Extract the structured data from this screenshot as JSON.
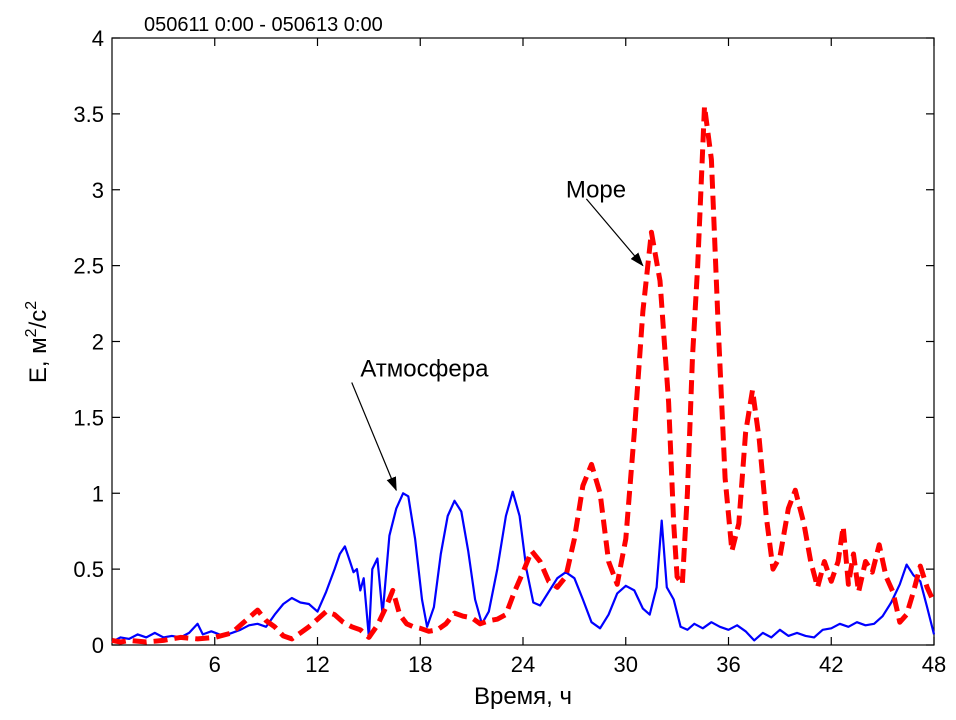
{
  "chart_data": {
    "type": "line",
    "title": "050611 0:00 - 050613 0:00",
    "xlabel": "Время, ч",
    "ylabel": {
      "base": "E, м",
      "sup1": "2",
      "mid": "/c",
      "sup2": "2"
    },
    "xlim": [
      0,
      48
    ],
    "ylim": [
      0,
      4
    ],
    "xticks": [
      6,
      12,
      18,
      24,
      30,
      36,
      42,
      48
    ],
    "yticks": [
      0,
      0.5,
      1,
      1.5,
      2,
      2.5,
      3,
      3.5,
      4
    ],
    "ytick_labels": [
      "0",
      "0.5",
      "1",
      "1.5",
      "2",
      "2.5",
      "3",
      "3.5",
      "4"
    ],
    "grid": false,
    "series": [
      {
        "style": "solid",
        "color": "#0000ff",
        "points": [
          [
            0,
            0.02
          ],
          [
            0.5,
            0.05
          ],
          [
            1,
            0.04
          ],
          [
            1.5,
            0.07
          ],
          [
            2,
            0.05
          ],
          [
            2.5,
            0.08
          ],
          [
            3,
            0.05
          ],
          [
            3.5,
            0.06
          ],
          [
            4,
            0.05
          ],
          [
            4.5,
            0.08
          ],
          [
            5,
            0.14
          ],
          [
            5.3,
            0.07
          ],
          [
            5.8,
            0.09
          ],
          [
            6.5,
            0.06
          ],
          [
            7,
            0.08
          ],
          [
            7.5,
            0.1
          ],
          [
            8,
            0.13
          ],
          [
            8.5,
            0.14
          ],
          [
            9,
            0.12
          ],
          [
            9.5,
            0.2
          ],
          [
            10,
            0.27
          ],
          [
            10.5,
            0.31
          ],
          [
            11,
            0.28
          ],
          [
            11.5,
            0.27
          ],
          [
            12,
            0.22
          ],
          [
            12.5,
            0.35
          ],
          [
            13,
            0.5
          ],
          [
            13.3,
            0.6
          ],
          [
            13.6,
            0.65
          ],
          [
            13.9,
            0.55
          ],
          [
            14.1,
            0.48
          ],
          [
            14.3,
            0.5
          ],
          [
            14.5,
            0.36
          ],
          [
            14.7,
            0.44
          ],
          [
            15,
            0.05
          ],
          [
            15.2,
            0.5
          ],
          [
            15.5,
            0.57
          ],
          [
            15.8,
            0.2
          ],
          [
            16.2,
            0.72
          ],
          [
            16.6,
            0.9
          ],
          [
            17,
            1.0
          ],
          [
            17.3,
            0.98
          ],
          [
            17.7,
            0.7
          ],
          [
            18.1,
            0.3
          ],
          [
            18.4,
            0.12
          ],
          [
            18.8,
            0.25
          ],
          [
            19.2,
            0.6
          ],
          [
            19.6,
            0.85
          ],
          [
            20,
            0.95
          ],
          [
            20.4,
            0.88
          ],
          [
            20.8,
            0.62
          ],
          [
            21.2,
            0.3
          ],
          [
            21.6,
            0.14
          ],
          [
            22,
            0.22
          ],
          [
            22.5,
            0.5
          ],
          [
            23,
            0.85
          ],
          [
            23.4,
            1.01
          ],
          [
            23.8,
            0.85
          ],
          [
            24.2,
            0.5
          ],
          [
            24.6,
            0.28
          ],
          [
            25,
            0.26
          ],
          [
            25.5,
            0.35
          ],
          [
            26,
            0.44
          ],
          [
            26.5,
            0.48
          ],
          [
            27,
            0.44
          ],
          [
            27.5,
            0.3
          ],
          [
            28,
            0.15
          ],
          [
            28.5,
            0.11
          ],
          [
            29,
            0.2
          ],
          [
            29.5,
            0.34
          ],
          [
            30,
            0.39
          ],
          [
            30.5,
            0.36
          ],
          [
            31,
            0.24
          ],
          [
            31.4,
            0.2
          ],
          [
            31.8,
            0.38
          ],
          [
            32.1,
            0.82
          ],
          [
            32.4,
            0.38
          ],
          [
            32.8,
            0.3
          ],
          [
            33.2,
            0.12
          ],
          [
            33.6,
            0.1
          ],
          [
            34,
            0.14
          ],
          [
            34.5,
            0.11
          ],
          [
            35,
            0.15
          ],
          [
            35.5,
            0.12
          ],
          [
            36,
            0.1
          ],
          [
            36.5,
            0.13
          ],
          [
            37,
            0.09
          ],
          [
            37.5,
            0.03
          ],
          [
            38,
            0.08
          ],
          [
            38.5,
            0.05
          ],
          [
            39,
            0.1
          ],
          [
            39.5,
            0.06
          ],
          [
            40,
            0.08
          ],
          [
            40.5,
            0.06
          ],
          [
            41,
            0.05
          ],
          [
            41.5,
            0.1
          ],
          [
            42,
            0.11
          ],
          [
            42.5,
            0.14
          ],
          [
            43,
            0.12
          ],
          [
            43.5,
            0.15
          ],
          [
            44,
            0.13
          ],
          [
            44.5,
            0.14
          ],
          [
            45,
            0.19
          ],
          [
            45.5,
            0.28
          ],
          [
            46,
            0.4
          ],
          [
            46.4,
            0.53
          ],
          [
            46.8,
            0.46
          ],
          [
            47.2,
            0.42
          ],
          [
            47.6,
            0.25
          ],
          [
            48,
            0.07
          ]
        ]
      },
      {
        "style": "dashed",
        "color": "#ff0000",
        "points": [
          [
            0,
            0.03
          ],
          [
            0.5,
            0.02
          ],
          [
            1,
            0.03
          ],
          [
            2,
            0.02
          ],
          [
            3,
            0.03
          ],
          [
            4,
            0.05
          ],
          [
            5,
            0.04
          ],
          [
            6,
            0.05
          ],
          [
            7,
            0.08
          ],
          [
            7.5,
            0.13
          ],
          [
            8,
            0.18
          ],
          [
            8.5,
            0.23
          ],
          [
            9,
            0.16
          ],
          [
            9.5,
            0.12
          ],
          [
            10,
            0.06
          ],
          [
            10.5,
            0.04
          ],
          [
            11,
            0.08
          ],
          [
            11.5,
            0.12
          ],
          [
            12,
            0.17
          ],
          [
            12.5,
            0.22
          ],
          [
            13,
            0.2
          ],
          [
            13.5,
            0.15
          ],
          [
            14,
            0.12
          ],
          [
            14.5,
            0.1
          ],
          [
            15,
            0.05
          ],
          [
            15.5,
            0.13
          ],
          [
            16,
            0.25
          ],
          [
            16.4,
            0.36
          ],
          [
            16.8,
            0.2
          ],
          [
            17.2,
            0.14
          ],
          [
            17.6,
            0.12
          ],
          [
            18,
            0.11
          ],
          [
            18.5,
            0.09
          ],
          [
            19,
            0.1
          ],
          [
            19.5,
            0.14
          ],
          [
            20,
            0.21
          ],
          [
            20.5,
            0.19
          ],
          [
            21,
            0.18
          ],
          [
            21.5,
            0.14
          ],
          [
            22,
            0.16
          ],
          [
            22.5,
            0.17
          ],
          [
            23,
            0.2
          ],
          [
            23.5,
            0.35
          ],
          [
            24,
            0.48
          ],
          [
            24.5,
            0.62
          ],
          [
            25,
            0.55
          ],
          [
            25.5,
            0.42
          ],
          [
            26,
            0.38
          ],
          [
            26.5,
            0.45
          ],
          [
            27,
            0.7
          ],
          [
            27.5,
            1.05
          ],
          [
            28,
            1.19
          ],
          [
            28.5,
            1.0
          ],
          [
            29,
            0.55
          ],
          [
            29.5,
            0.4
          ],
          [
            30,
            0.7
          ],
          [
            30.5,
            1.4
          ],
          [
            31,
            2.2
          ],
          [
            31.5,
            2.72
          ],
          [
            32,
            2.4
          ],
          [
            32.5,
            1.6
          ],
          [
            32.8,
            0.8
          ],
          [
            33,
            0.45
          ],
          [
            33.3,
            0.4
          ],
          [
            33.6,
            1.0
          ],
          [
            33.9,
            1.9
          ],
          [
            34.2,
            2.5
          ],
          [
            34.6,
            3.55
          ],
          [
            35,
            3.2
          ],
          [
            35.4,
            2.1
          ],
          [
            35.8,
            1.1
          ],
          [
            36.2,
            0.62
          ],
          [
            36.6,
            0.8
          ],
          [
            37,
            1.4
          ],
          [
            37.4,
            1.68
          ],
          [
            37.8,
            1.35
          ],
          [
            38.2,
            0.85
          ],
          [
            38.6,
            0.5
          ],
          [
            39,
            0.58
          ],
          [
            39.5,
            0.9
          ],
          [
            39.9,
            1.02
          ],
          [
            40.4,
            0.8
          ],
          [
            40.8,
            0.55
          ],
          [
            41.2,
            0.38
          ],
          [
            41.6,
            0.55
          ],
          [
            42,
            0.42
          ],
          [
            42.4,
            0.55
          ],
          [
            42.7,
            0.78
          ],
          [
            43,
            0.4
          ],
          [
            43.3,
            0.6
          ],
          [
            43.6,
            0.35
          ],
          [
            44,
            0.55
          ],
          [
            44.4,
            0.48
          ],
          [
            44.8,
            0.66
          ],
          [
            45.2,
            0.45
          ],
          [
            45.6,
            0.35
          ],
          [
            46,
            0.15
          ],
          [
            46.4,
            0.2
          ],
          [
            46.8,
            0.35
          ],
          [
            47.2,
            0.52
          ],
          [
            47.6,
            0.38
          ],
          [
            48,
            0.28
          ]
        ]
      }
    ],
    "annotations": [
      {
        "text": "Море",
        "text_at": [
          26.5,
          2.95
        ],
        "arrow_from": [
          27.7,
          2.94
        ],
        "arrow_to": [
          31.0,
          2.5
        ]
      },
      {
        "text": "Атмосфера",
        "text_at": [
          14.5,
          1.77
        ],
        "arrow_from": [
          14.0,
          1.73
        ],
        "arrow_to": [
          16.6,
          1.02
        ]
      }
    ]
  }
}
